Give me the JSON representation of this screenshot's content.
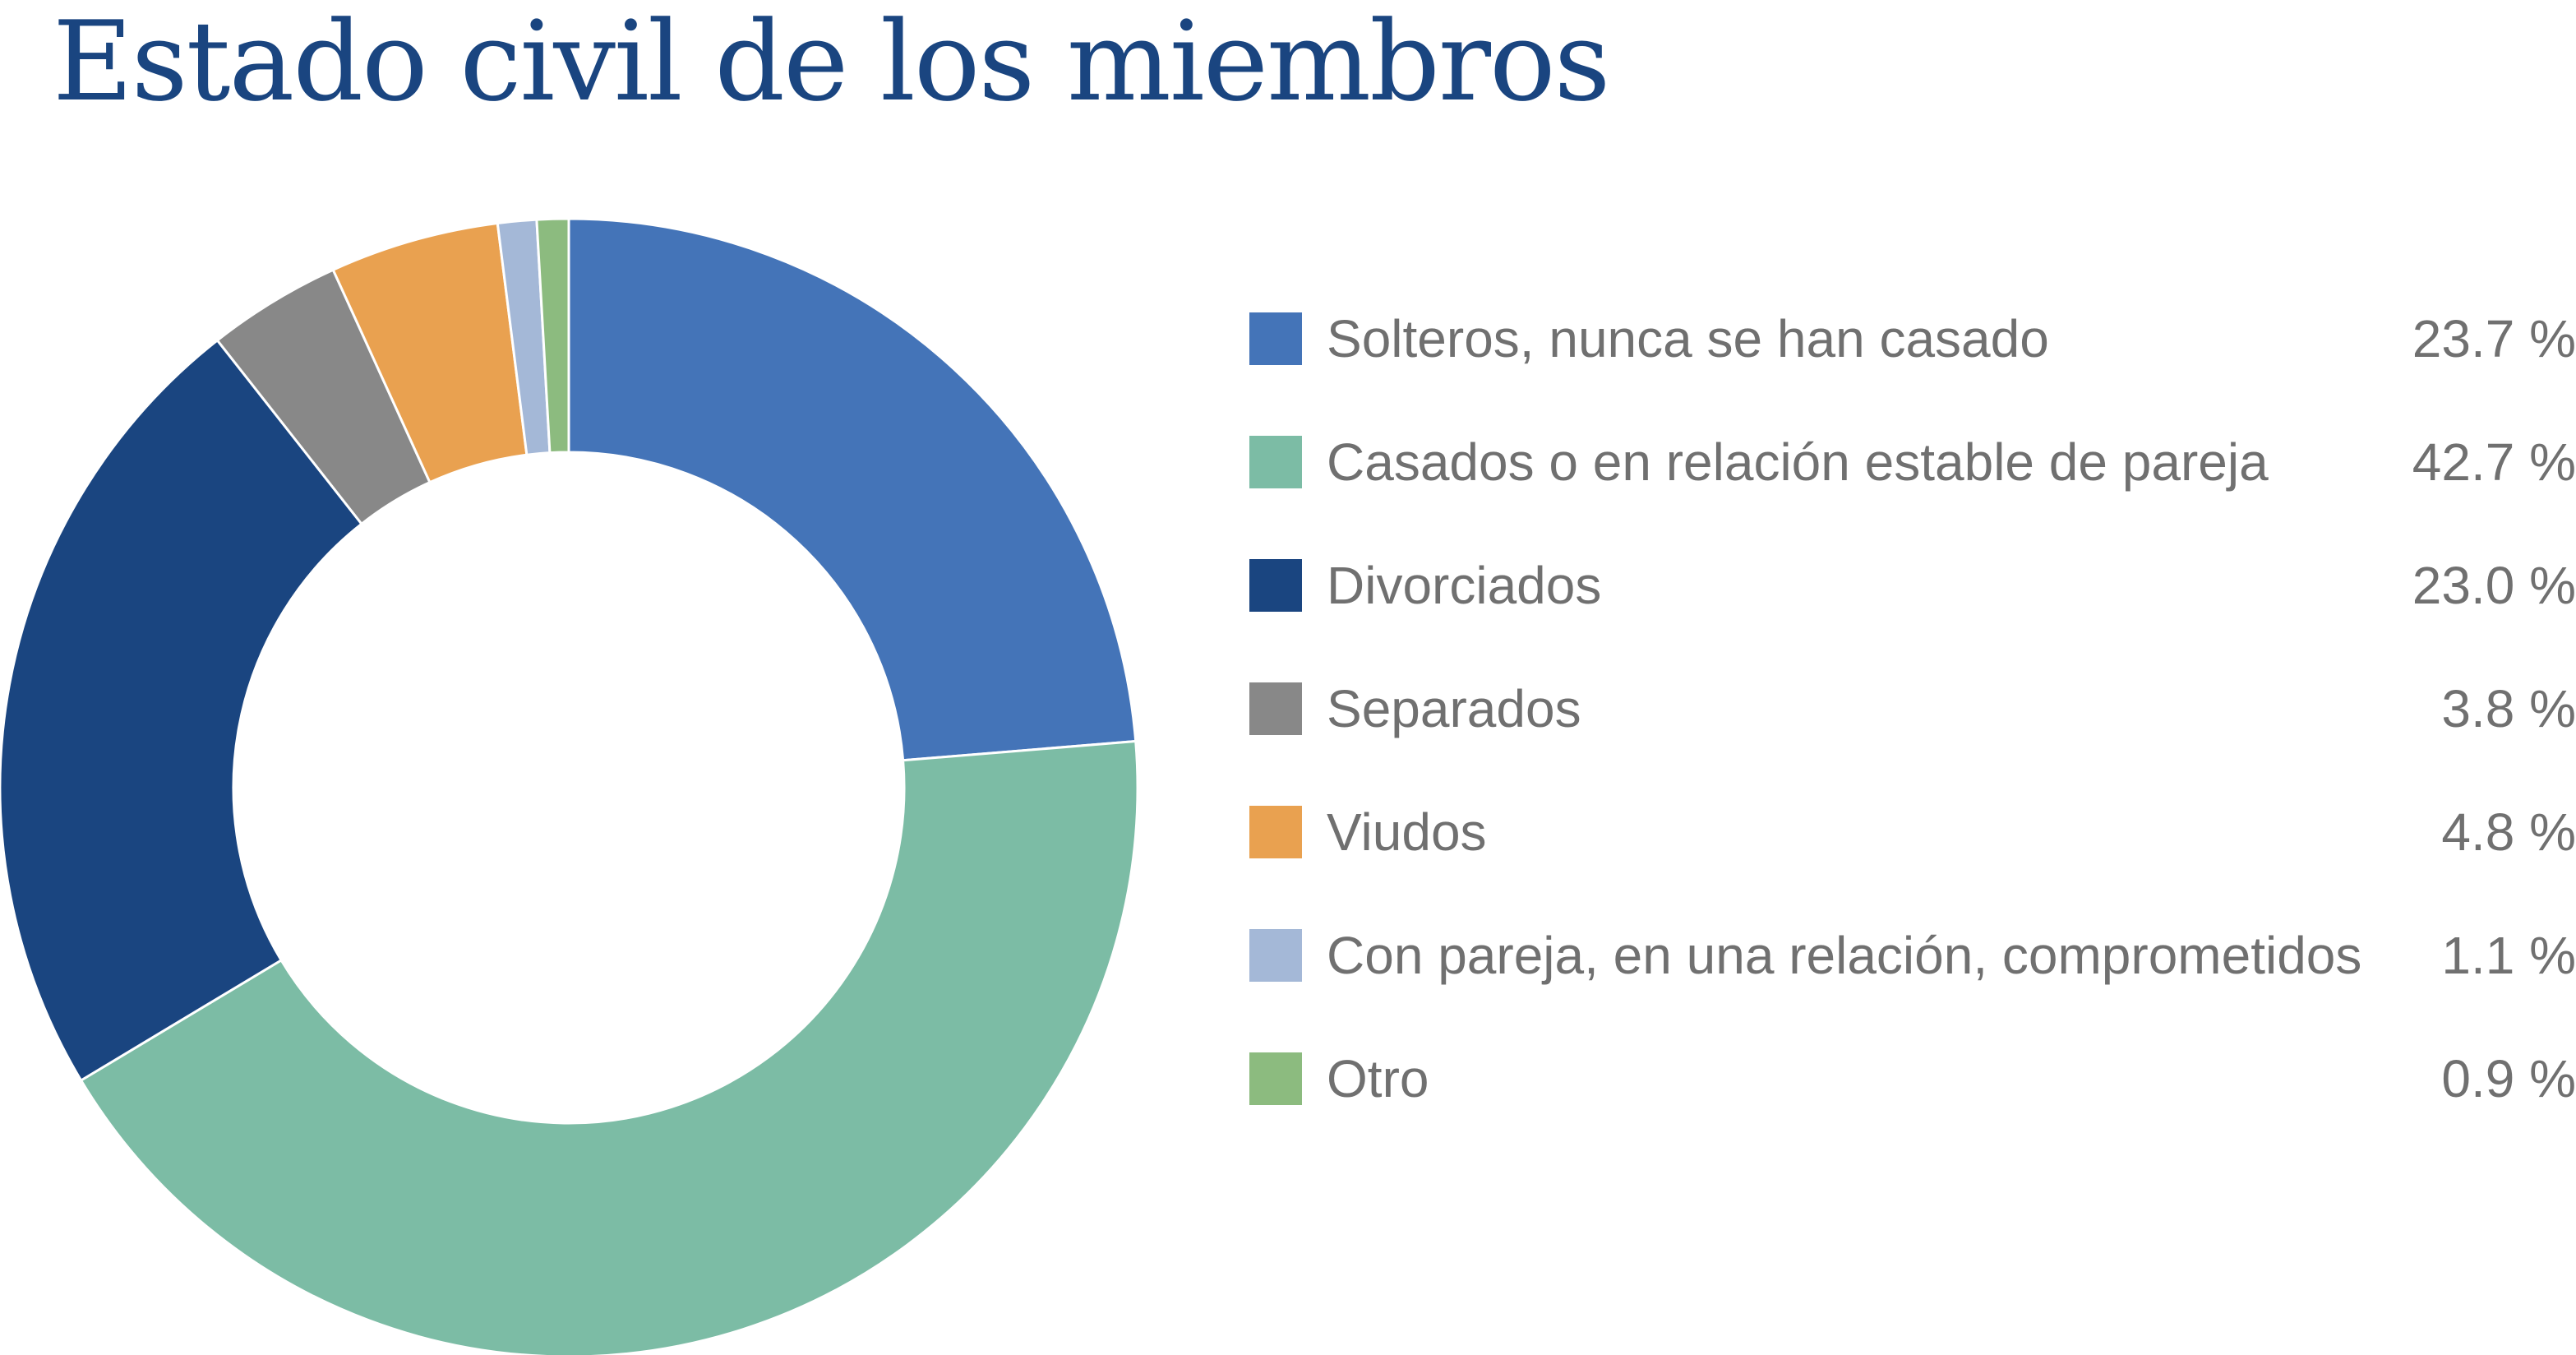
{
  "chart_data": {
    "type": "pie",
    "subtype": "donut",
    "title": "Estado civil de los miembros",
    "legend_position": "right",
    "categories": [
      "Solteros, nunca se han casado",
      "Casados o en relación estable de pareja",
      "Divorciados",
      "Separados",
      "Viudos",
      "Con pareja, en una relación, comprometidos",
      "Otro"
    ],
    "values": [
      23.7,
      42.7,
      23.0,
      3.8,
      4.8,
      1.1,
      0.9
    ],
    "value_labels": [
      "23.7 %",
      "42.7 %",
      "23.0 %",
      "3.8 %",
      "4.8 %",
      "1.1 %",
      "0.9 %"
    ],
    "colors": [
      "#4474b8",
      "#7cbca5",
      "#1a4580",
      "#888888",
      "#e9a150",
      "#a4b8d7",
      "#8cbb7f"
    ]
  }
}
